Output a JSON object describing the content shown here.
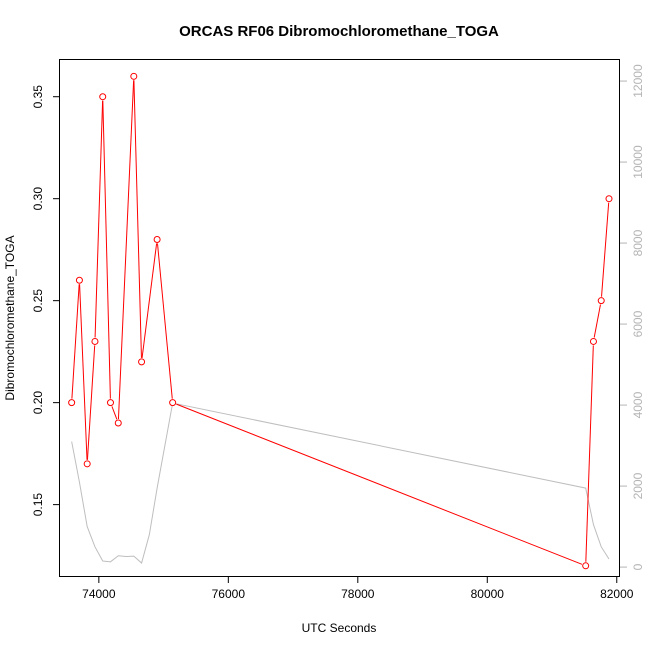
{
  "chart_data": {
    "type": "line",
    "title": "ORCAS RF06 Dibromochloromethane_TOGA",
    "xlabel": "UTC Seconds",
    "ylabel": "Dibromochloromethane_TOGA",
    "xlim": [
      73400,
      82050
    ],
    "ylim": [
      0.115,
      0.368
    ],
    "y2lim": [
      -220,
      12520
    ],
    "x_ticks": [
      74000,
      76000,
      78000,
      80000,
      82000
    ],
    "y_ticks": [
      0.15,
      0.2,
      0.25,
      0.3,
      0.35
    ],
    "y2_ticks": [
      0,
      2000,
      4000,
      6000,
      8000,
      10000,
      12000
    ],
    "x_tick_labels": [
      "74000",
      "76000",
      "78000",
      "80000",
      "82000"
    ],
    "y_tick_labels": [
      "0.15",
      "0.20",
      "0.25",
      "0.30",
      "0.35"
    ],
    "y2_tick_labels": [
      "0",
      "2000",
      "4000",
      "6000",
      "8000",
      "10000",
      "12000"
    ],
    "series": [
      {
        "color": "#ff0000",
        "marker": "open-circle",
        "x": [
          73580,
          73700,
          73820,
          73940,
          74060,
          74180,
          74300,
          74540,
          74660,
          74900,
          75140,
          81520,
          81640,
          81760,
          81880
        ],
        "y": [
          0.2,
          0.26,
          0.17,
          0.23,
          0.35,
          0.2,
          0.19,
          0.36,
          0.22,
          0.28,
          0.2,
          0.12,
          0.23,
          0.25,
          0.3
        ]
      },
      {
        "color": "#bebebe",
        "marker": "none",
        "axis": "right",
        "x": [
          73580,
          73700,
          73820,
          73940,
          74060,
          74180,
          74300,
          74420,
          74540,
          74660,
          74780,
          74900,
          75140,
          81520,
          81640,
          81760,
          81880
        ],
        "y": [
          3100,
          2100,
          1000,
          500,
          150,
          130,
          280,
          260,
          270,
          100,
          800,
          1950,
          4050,
          1950,
          1050,
          500,
          200
        ]
      }
    ],
    "grid": false,
    "legend": "none"
  }
}
